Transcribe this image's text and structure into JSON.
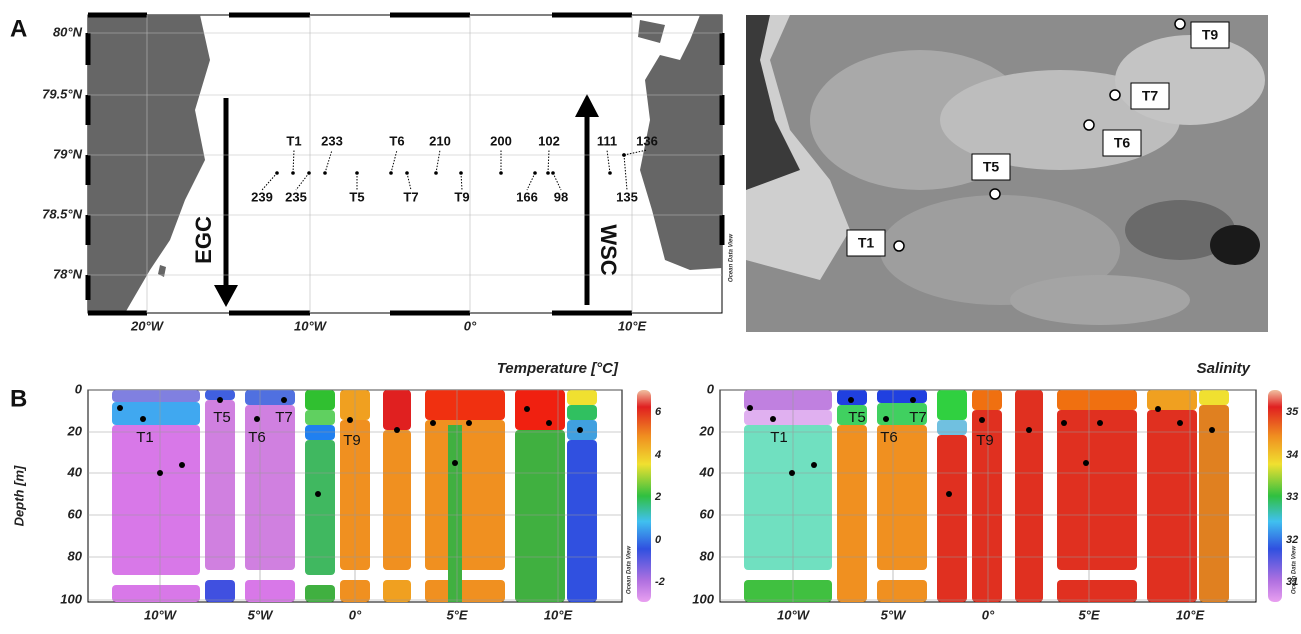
{
  "panel_a": {
    "label": "A",
    "map": {
      "lat_labels": [
        "80°N",
        "79.5°N",
        "79°N",
        "78.5°N",
        "78°N"
      ],
      "lon_labels": [
        "20°W",
        "10°W",
        "0°",
        "10°E"
      ],
      "stations": [
        "239",
        "T1",
        "235",
        "233",
        "T5",
        "T6",
        "T7",
        "210",
        "T9",
        "200",
        "166",
        "102",
        "98",
        "111",
        "135",
        "136"
      ],
      "currents": [
        "EGC",
        "WSC"
      ],
      "watermark": "Ocean Data View"
    },
    "satellite": {
      "stations": [
        "T9",
        "T7",
        "T6",
        "T5",
        "T1"
      ]
    }
  },
  "panel_b": {
    "label": "B",
    "y_axis_title": "Depth [m]",
    "temperature": {
      "title": "Temperature [°C]",
      "depth_labels": [
        "0",
        "20",
        "40",
        "60",
        "80",
        "100"
      ],
      "lon_labels": [
        "10°W",
        "5°W",
        "0°",
        "5°E",
        "10°E"
      ],
      "colorbar_labels": [
        "6",
        "4",
        "2",
        "0",
        "-2"
      ],
      "stations": [
        "T1",
        "T5",
        "T6",
        "T7",
        "T9"
      ],
      "watermark": "Ocean Data View"
    },
    "salinity": {
      "title": "Salinity",
      "depth_labels": [
        "0",
        "20",
        "40",
        "60",
        "80",
        "100"
      ],
      "lon_labels": [
        "10°W",
        "5°W",
        "0°",
        "5°E",
        "10°E"
      ],
      "colorbar_labels": [
        "35",
        "34",
        "33",
        "32",
        "31"
      ],
      "stations": [
        "T1",
        "T5",
        "T6",
        "T7",
        "T9"
      ],
      "watermark": "Ocean Data View"
    }
  }
}
